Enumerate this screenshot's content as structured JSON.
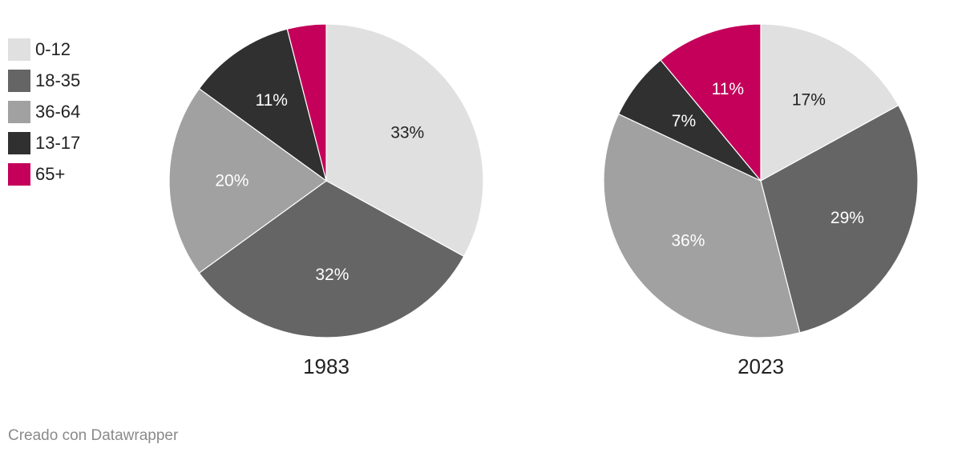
{
  "legend": [
    {
      "label": "0-12",
      "color": "#e0e0e0"
    },
    {
      "label": "18-35",
      "color": "#656565"
    },
    {
      "label": "36-64",
      "color": "#a1a1a1"
    },
    {
      "label": "13-17",
      "color": "#303030"
    },
    {
      "label": "65+",
      "color": "#c4005a"
    }
  ],
  "chart_data": [
    {
      "type": "pie",
      "title": "1983",
      "categories": [
        "0-12",
        "18-35",
        "36-64",
        "13-17",
        "65+"
      ],
      "values": [
        33,
        32,
        20,
        11,
        4
      ],
      "labels": [
        "33%",
        "32%",
        "20%",
        "11%",
        ""
      ],
      "colors": [
        "#e0e0e0",
        "#656565",
        "#a1a1a1",
        "#303030",
        "#c4005a"
      ]
    },
    {
      "type": "pie",
      "title": "2023",
      "categories": [
        "0-12",
        "18-35",
        "36-64",
        "13-17",
        "65+"
      ],
      "values": [
        17,
        29,
        36,
        7,
        11
      ],
      "labels": [
        "17%",
        "29%",
        "36%",
        "7%",
        "11%"
      ],
      "colors": [
        "#e0e0e0",
        "#656565",
        "#a1a1a1",
        "#303030",
        "#c4005a"
      ]
    }
  ],
  "footer": {
    "credit": "Creado con Datawrapper"
  }
}
